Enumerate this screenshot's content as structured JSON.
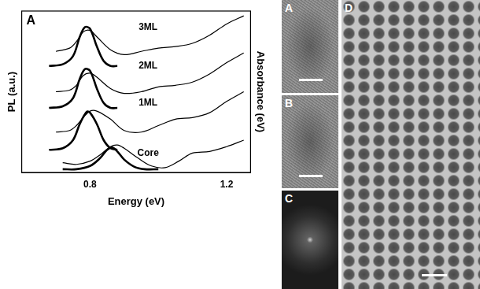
{
  "chart_data": {
    "type": "line",
    "panel_label": "A",
    "x_label": "Energy (eV)",
    "y_label": "PL (a.u.)",
    "y2_label": "Absorbance (eV)",
    "xlim": [
      0.6,
      1.27
    ],
    "xticks": [
      0.8,
      1.2
    ],
    "ylim": [
      0,
      10
    ],
    "y2lim": [
      0,
      10
    ],
    "grid": false,
    "tick_labels": "x",
    "series": [
      {
        "axis": "y2",
        "color": "#000000",
        "line_style": "solid",
        "x": [
          0.7,
          0.74,
          0.76,
          0.78,
          0.8,
          0.82,
          0.86,
          0.9,
          0.95,
          1.0,
          1.05,
          1.1,
          1.15,
          1.2,
          1.25
        ],
        "values": [
          7.5,
          7.7,
          8.1,
          8.7,
          8.8,
          8.4,
          7.6,
          7.3,
          7.5,
          7.7,
          7.8,
          8.0,
          8.5,
          9.2,
          9.7
        ]
      },
      {
        "axis": "y",
        "color": "#000000",
        "line_style": "solid",
        "x": [
          0.68,
          0.72,
          0.75,
          0.77,
          0.785,
          0.8,
          0.82,
          0.84,
          0.86,
          0.88
        ],
        "values": [
          6.6,
          6.7,
          7.2,
          8.4,
          9.0,
          8.9,
          7.8,
          6.9,
          6.6,
          6.6
        ]
      },
      {
        "axis": "y2",
        "color": "#000000",
        "line_style": "solid",
        "x": [
          0.7,
          0.74,
          0.76,
          0.78,
          0.8,
          0.82,
          0.86,
          0.9,
          0.95,
          1.0,
          1.05,
          1.1,
          1.15,
          1.2,
          1.25
        ],
        "values": [
          5.0,
          5.1,
          5.4,
          6.0,
          6.15,
          5.9,
          5.2,
          4.9,
          5.0,
          5.3,
          5.4,
          5.6,
          6.1,
          6.8,
          7.4
        ]
      },
      {
        "axis": "y",
        "color": "#000000",
        "line_style": "solid",
        "x": [
          0.68,
          0.72,
          0.75,
          0.77,
          0.785,
          0.8,
          0.82,
          0.84,
          0.86,
          0.88
        ],
        "values": [
          4.0,
          4.1,
          4.6,
          5.8,
          6.4,
          6.3,
          5.2,
          4.3,
          4.0,
          4.0
        ]
      },
      {
        "axis": "y2",
        "color": "#000000",
        "line_style": "solid",
        "x": [
          0.7,
          0.74,
          0.76,
          0.78,
          0.8,
          0.82,
          0.86,
          0.9,
          0.95,
          1.0,
          1.05,
          1.1,
          1.15,
          1.2,
          1.25
        ],
        "values": [
          2.5,
          2.6,
          2.9,
          3.4,
          3.8,
          3.8,
          3.3,
          2.6,
          2.5,
          2.9,
          3.3,
          3.4,
          3.7,
          4.4,
          5.0
        ]
      },
      {
        "axis": "y",
        "color": "#000000",
        "line_style": "solid",
        "x": [
          0.68,
          0.72,
          0.75,
          0.77,
          0.79,
          0.8,
          0.82,
          0.84,
          0.86,
          0.88
        ],
        "values": [
          1.4,
          1.5,
          2.0,
          3.0,
          3.75,
          3.7,
          3.0,
          2.0,
          1.5,
          1.4
        ]
      },
      {
        "axis": "y2",
        "color": "#000000",
        "line_style": "solid",
        "x": [
          0.72,
          0.76,
          0.8,
          0.83,
          0.86,
          0.88,
          0.9,
          0.94,
          0.98,
          1.02,
          1.06,
          1.1,
          1.15,
          1.2,
          1.25
        ],
        "values": [
          0.6,
          0.5,
          0.7,
          1.1,
          1.6,
          1.7,
          1.5,
          0.9,
          0.4,
          0.3,
          0.7,
          1.2,
          1.3,
          1.6,
          2.0
        ]
      },
      {
        "axis": "y",
        "color": "#000000",
        "line_style": "solid",
        "x": [
          0.72,
          0.76,
          0.8,
          0.83,
          0.85,
          0.865,
          0.88,
          0.9,
          0.93,
          0.96,
          1.0
        ],
        "values": [
          0.2,
          0.2,
          0.4,
          0.9,
          1.4,
          1.55,
          1.3,
          0.8,
          0.35,
          0.2,
          0.2
        ]
      }
    ],
    "annotations": [
      {
        "text": "3ML",
        "x": 0.97,
        "y": 9.0
      },
      {
        "text": "2ML",
        "x": 0.97,
        "y": 6.6
      },
      {
        "text": "1ML",
        "x": 0.97,
        "y": 4.3
      },
      {
        "text": "Core",
        "x": 0.97,
        "y": 1.2
      }
    ]
  },
  "micrographs": [
    {
      "label": "A"
    },
    {
      "label": "B"
    },
    {
      "label": "C"
    },
    {
      "label": "D"
    }
  ]
}
